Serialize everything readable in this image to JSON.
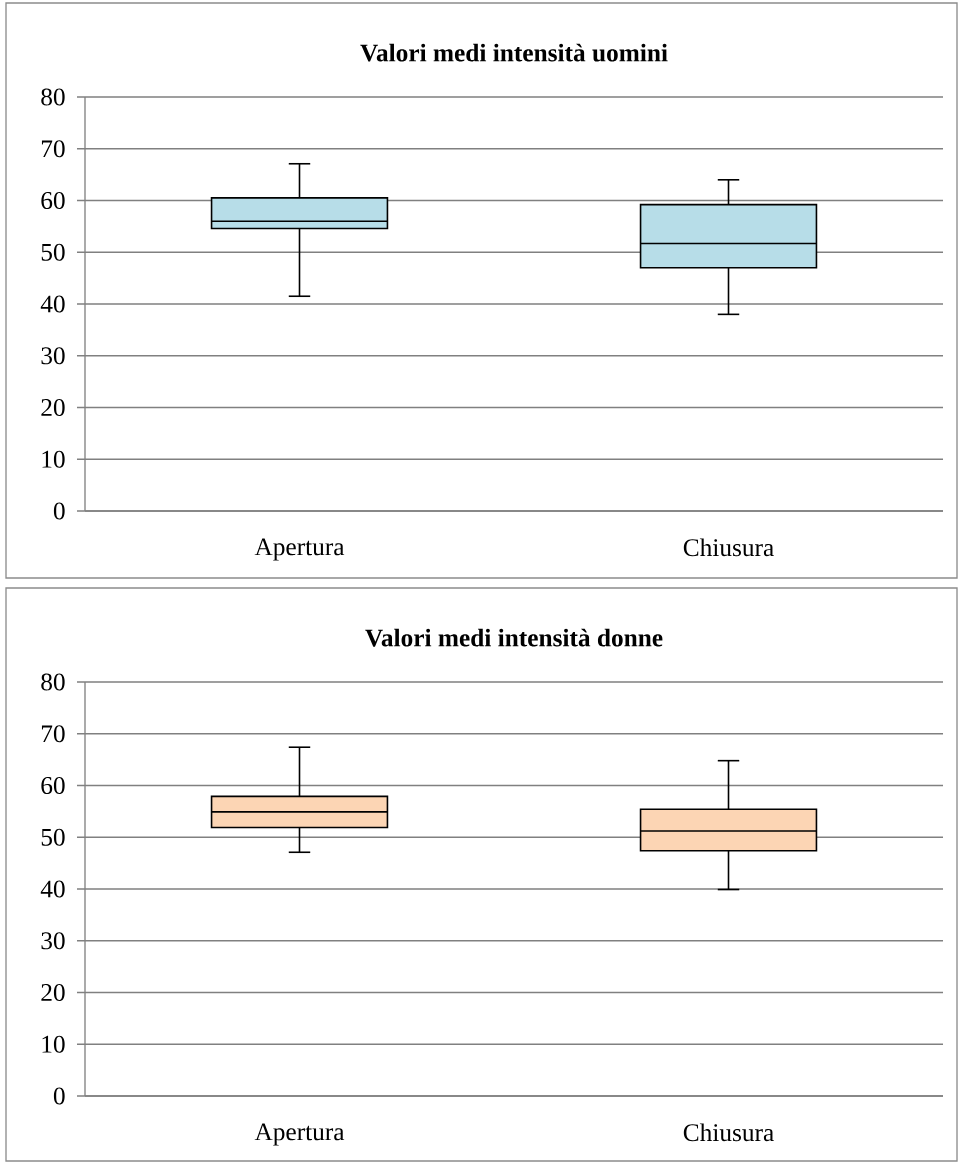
{
  "chart_data": [
    {
      "type": "box",
      "title": "**Valori medi intensità uomini**",
      "categories": [
        "Apertura",
        "Chiusura"
      ],
      "color": "#b7dde8",
      "boxes": [
        {
          "low": 41.5,
          "q1": 54.6,
          "median": 56.0,
          "q3": 60.5,
          "high": 67.1
        },
        {
          "low": 38.0,
          "q1": 47.0,
          "median": 51.7,
          "q3": 59.2,
          "high": 64.0
        }
      ],
      "ylim": [
        0,
        80
      ],
      "yticks": [
        0,
        10,
        20,
        30,
        40,
        50,
        60,
        70,
        80
      ],
      "grid": "y"
    },
    {
      "type": "box",
      "title": "**Valori medi intensità donne**",
      "categories": [
        "Apertura",
        "Chiusura"
      ],
      "color": "#fcd5b4",
      "boxes": [
        {
          "low": 47.1,
          "q1": 51.9,
          "median": 54.9,
          "q3": 57.9,
          "high": 67.4
        },
        {
          "low": 39.9,
          "q1": 47.4,
          "median": 51.2,
          "q3": 55.4,
          "high": 64.8
        }
      ],
      "ylim": [
        0,
        80
      ],
      "yticks": [
        0,
        10,
        20,
        30,
        40,
        50,
        60,
        70,
        80
      ],
      "grid": "y"
    }
  ]
}
